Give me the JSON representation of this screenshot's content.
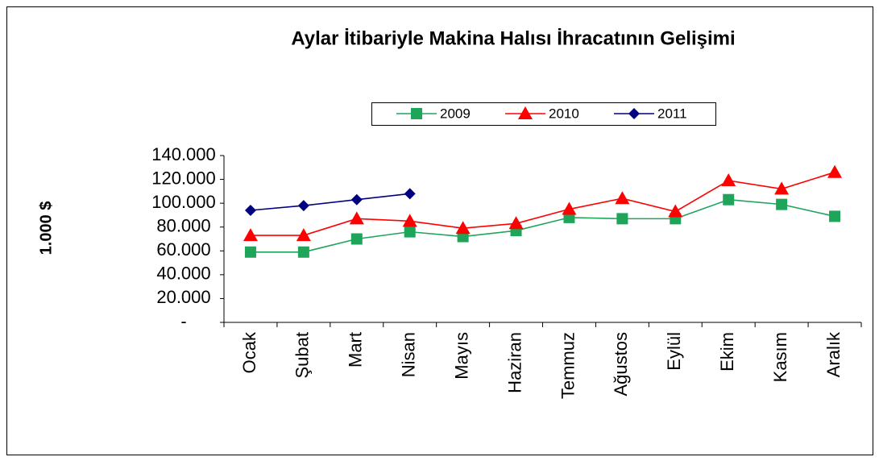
{
  "chart_data": {
    "type": "line",
    "title": "Aylar İtibariyle Makina Halısı İhracatının Gelişimi",
    "y_label": "1.000 $",
    "categories": [
      "Ocak",
      "Şubat",
      "Mart",
      "Nisan",
      "Mayıs",
      "Haziran",
      "Temmuz",
      "Ağustos",
      "Eylül",
      "Ekim",
      "Kasım",
      "Aralık"
    ],
    "series": [
      {
        "name": "2009",
        "color": "#1fa55a",
        "marker": "square",
        "values": [
          59000,
          59000,
          70000,
          76000,
          72000,
          77000,
          88000,
          87000,
          87000,
          103000,
          99000,
          89000
        ]
      },
      {
        "name": "2010",
        "color": "#ff0000",
        "marker": "triangle",
        "values": [
          73000,
          73000,
          87000,
          85000,
          79000,
          83000,
          95000,
          104000,
          93000,
          119000,
          112000,
          126000
        ]
      },
      {
        "name": "2011",
        "color": "#000080",
        "marker": "diamond",
        "values": [
          94000,
          98000,
          103000,
          108000,
          null,
          null,
          null,
          null,
          null,
          null,
          null,
          null
        ]
      }
    ],
    "ylim": [
      0,
      140000
    ],
    "yticks": [
      {
        "value": 0,
        "label": "-"
      },
      {
        "value": 20000,
        "label": "20.000"
      },
      {
        "value": 40000,
        "label": "40.000"
      },
      {
        "value": 60000,
        "label": "60.000"
      },
      {
        "value": 80000,
        "label": "80.000"
      },
      {
        "value": 100000,
        "label": "100.000"
      },
      {
        "value": 120000,
        "label": "120.000"
      },
      {
        "value": 140000,
        "label": "140.000"
      }
    ],
    "grid": false,
    "legend": "top"
  }
}
